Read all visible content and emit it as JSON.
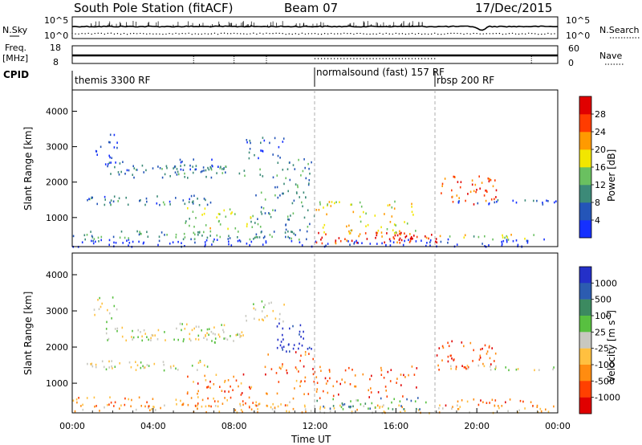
{
  "header": {
    "title": "South Pole Station (fitACF)",
    "beam": "Beam 07",
    "date": "17/Dec/2015"
  },
  "top_panels": {
    "nsky_label": "N.Sky",
    "nsky_ticks": [
      "10^5",
      "10^0"
    ],
    "nsearch_label": "N.Search",
    "nsearch_ticks": [
      "10^5",
      "10^0"
    ],
    "freq_label": "Freq.",
    "freq_unit": "[MHz]",
    "freq_ticks": [
      "18",
      "8"
    ],
    "nave_label": "Nave",
    "nave_ticks": [
      "60",
      "0"
    ],
    "cpid_label": "CPID",
    "cpid_segments": [
      {
        "label": "themis 3300 RF",
        "start_hr": 0
      },
      {
        "label": "normalsound (fast) 157 RF",
        "start_hr": 12
      },
      {
        "label": "rbsp 200 RF",
        "start_hr": 18
      }
    ]
  },
  "chart_data": [
    {
      "type": "heatmap",
      "name": "power",
      "ylabel": "Slant Range [km]",
      "yticks": [
        "1000",
        "2000",
        "3000",
        "4000"
      ],
      "ylim": [
        180,
        4600
      ],
      "xlim": [
        0,
        24
      ],
      "colorbar_label": "Power [dB]",
      "colorbar_ticks": [
        "4",
        "8",
        "12",
        "16",
        "20",
        "24",
        "28"
      ],
      "colorbar_colors": [
        "#1530ff",
        "#2455b8",
        "#3c8a78",
        "#6ac060",
        "#f2e600",
        "#ff9a00",
        "#ff3c00",
        "#e00000"
      ],
      "regions": [
        {
          "x0": 0.0,
          "x1": 24.0,
          "y0": 200,
          "y1": 420,
          "level": 0.0,
          "density": 0.55
        },
        {
          "x0": 0.0,
          "x1": 11.5,
          "y0": 350,
          "y1": 650,
          "level": 0.35,
          "density": 0.6
        },
        {
          "x0": 0.7,
          "x1": 7.0,
          "y0": 1380,
          "y1": 1650,
          "level": 0.25,
          "density": 0.75
        },
        {
          "x0": 1.5,
          "x1": 3.5,
          "y0": 2200,
          "y1": 2600,
          "level": 0.2,
          "density": 0.65
        },
        {
          "x0": 3.0,
          "x1": 8.5,
          "y0": 2150,
          "y1": 2500,
          "level": 0.3,
          "density": 0.7
        },
        {
          "x0": 5.0,
          "x1": 7.5,
          "y0": 2350,
          "y1": 2700,
          "level": 0.2,
          "density": 0.6
        },
        {
          "x0": 1.0,
          "x1": 2.2,
          "y0": 2700,
          "y1": 3400,
          "level": 0.1,
          "density": 0.45
        },
        {
          "x0": 8.5,
          "x1": 10.5,
          "y0": 2700,
          "y1": 3300,
          "level": 0.2,
          "density": 0.5
        },
        {
          "x0": 5.5,
          "x1": 9.0,
          "y0": 700,
          "y1": 1300,
          "level": 0.5,
          "density": 0.45
        },
        {
          "x0": 9.0,
          "x1": 12.0,
          "y0": 600,
          "y1": 2700,
          "level": 0.3,
          "density": 0.35
        },
        {
          "x0": 12.0,
          "x1": 17.5,
          "y0": 300,
          "y1": 600,
          "level": 0.85,
          "density": 0.7
        },
        {
          "x0": 12.0,
          "x1": 17.0,
          "y0": 550,
          "y1": 1500,
          "level": 0.55,
          "density": 0.35
        },
        {
          "x0": 16.0,
          "x1": 18.0,
          "y0": 300,
          "y1": 550,
          "level": 0.95,
          "density": 0.8
        },
        {
          "x0": 18.0,
          "x1": 21.0,
          "y0": 1400,
          "y1": 2200,
          "level": 0.8,
          "density": 0.5
        },
        {
          "x0": 18.5,
          "x1": 24.0,
          "y0": 1380,
          "y1": 1520,
          "level": 0.15,
          "density": 0.7
        },
        {
          "x0": 18.0,
          "x1": 23.0,
          "y0": 400,
          "y1": 550,
          "level": 0.5,
          "density": 0.6
        }
      ]
    },
    {
      "type": "heatmap",
      "name": "velocity",
      "ylabel": "Slant Range [km]",
      "yticks": [
        "1000",
        "2000",
        "3000",
        "4000"
      ],
      "ylim": [
        180,
        4600
      ],
      "xlim": [
        0,
        24
      ],
      "xlabel": "Time UT",
      "xticks": [
        "00:00",
        "04:00",
        "08:00",
        "12:00",
        "16:00",
        "20:00",
        "00:00"
      ],
      "colorbar_label": "Velocity [m s",
      "colorbar_unit_exp": "-1",
      "colorbar_unit_end": "]",
      "colorbar_ticks": [
        "1000",
        "500",
        "100",
        "25",
        "-25",
        "-100",
        "-500",
        "-1000"
      ],
      "colorbar_colors": [
        "#2430c8",
        "#2c5cb0",
        "#3c8a60",
        "#58c040",
        "#c8c8c0",
        "#ffc040",
        "#ff8c10",
        "#ff4000",
        "#e00000"
      ],
      "regions": [
        {
          "x0": 0.0,
          "x1": 24.0,
          "y0": 200,
          "y1": 420,
          "level": 0.62,
          "density": 0.55
        },
        {
          "x0": 0.0,
          "x1": 11.5,
          "y0": 350,
          "y1": 650,
          "level": 0.7,
          "density": 0.55
        },
        {
          "x0": 0.7,
          "x1": 7.0,
          "y0": 1380,
          "y1": 1650,
          "level": 0.5,
          "density": 0.7
        },
        {
          "x0": 1.5,
          "x1": 3.5,
          "y0": 2200,
          "y1": 2600,
          "level": 0.5,
          "density": 0.6
        },
        {
          "x0": 3.0,
          "x1": 8.5,
          "y0": 2150,
          "y1": 2500,
          "level": 0.5,
          "density": 0.7
        },
        {
          "x0": 5.0,
          "x1": 7.5,
          "y0": 2350,
          "y1": 2700,
          "level": 0.5,
          "density": 0.6
        },
        {
          "x0": 1.0,
          "x1": 2.2,
          "y0": 2700,
          "y1": 3400,
          "level": 0.5,
          "density": 0.45
        },
        {
          "x0": 8.5,
          "x1": 10.5,
          "y0": 2700,
          "y1": 3300,
          "level": 0.5,
          "density": 0.5
        },
        {
          "x0": 5.5,
          "x1": 9.0,
          "y0": 700,
          "y1": 1300,
          "level": 0.78,
          "density": 0.45
        },
        {
          "x0": 10.0,
          "x1": 11.8,
          "y0": 1900,
          "y1": 2700,
          "level": 0.05,
          "density": 0.6
        },
        {
          "x0": 9.5,
          "x1": 12.0,
          "y0": 700,
          "y1": 1900,
          "level": 0.78,
          "density": 0.35
        },
        {
          "x0": 12.0,
          "x1": 17.5,
          "y0": 300,
          "y1": 650,
          "level": 0.3,
          "density": 0.55
        },
        {
          "x0": 12.0,
          "x1": 17.0,
          "y0": 600,
          "y1": 1500,
          "level": 0.82,
          "density": 0.35
        },
        {
          "x0": 18.0,
          "x1": 21.0,
          "y0": 1400,
          "y1": 2200,
          "level": 0.85,
          "density": 0.5
        },
        {
          "x0": 18.5,
          "x1": 24.0,
          "y0": 1380,
          "y1": 1520,
          "level": 0.5,
          "density": 0.65
        },
        {
          "x0": 18.0,
          "x1": 23.0,
          "y0": 400,
          "y1": 600,
          "level": 0.75,
          "density": 0.55
        }
      ]
    }
  ]
}
